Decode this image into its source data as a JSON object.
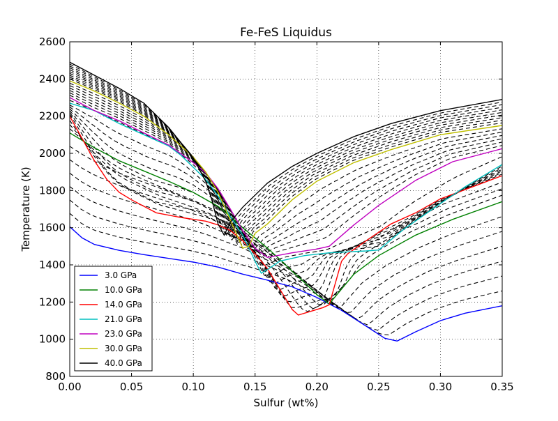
{
  "chart_data": {
    "type": "line",
    "title": "Fe-FeS Liquidus",
    "xlabel": "Sulfur (wt%)",
    "ylabel": "Temperature (K)",
    "xlim": [
      0.0,
      0.35
    ],
    "ylim": [
      800,
      2600
    ],
    "xticks": [
      "0.00",
      "0.05",
      "0.10",
      "0.15",
      "0.20",
      "0.25",
      "0.30",
      "0.35"
    ],
    "yticks": [
      "800",
      "1000",
      "1200",
      "1400",
      "1600",
      "1800",
      "2000",
      "2200",
      "2400",
      "2600"
    ],
    "grid": true,
    "legend_position": "lower-left",
    "series": [
      {
        "name": "3.0 GPa",
        "color": "#0000ff",
        "style": "solid",
        "points": [
          [
            0.0,
            1605
          ],
          [
            0.01,
            1545
          ],
          [
            0.02,
            1510
          ],
          [
            0.04,
            1478
          ],
          [
            0.06,
            1455
          ],
          [
            0.08,
            1435
          ],
          [
            0.1,
            1415
          ],
          [
            0.12,
            1388
          ],
          [
            0.14,
            1350
          ],
          [
            0.16,
            1318
          ],
          [
            0.18,
            1282
          ],
          [
            0.2,
            1225
          ],
          [
            0.22,
            1155
          ],
          [
            0.24,
            1070
          ],
          [
            0.255,
            1005
          ],
          [
            0.265,
            990
          ],
          [
            0.28,
            1040
          ],
          [
            0.3,
            1100
          ],
          [
            0.32,
            1140
          ],
          [
            0.35,
            1180
          ]
        ]
      },
      {
        "name": "10.0 GPa",
        "color": "#008000",
        "style": "solid",
        "points": [
          [
            0.0,
            2110
          ],
          [
            0.02,
            2030
          ],
          [
            0.04,
            1960
          ],
          [
            0.06,
            1905
          ],
          [
            0.08,
            1850
          ],
          [
            0.1,
            1790
          ],
          [
            0.12,
            1715
          ],
          [
            0.13,
            1660
          ],
          [
            0.14,
            1600
          ],
          [
            0.15,
            1545
          ],
          [
            0.16,
            1490
          ],
          [
            0.17,
            1430
          ],
          [
            0.18,
            1365
          ],
          [
            0.19,
            1305
          ],
          [
            0.2,
            1240
          ],
          [
            0.21,
            1190
          ],
          [
            0.22,
            1270
          ],
          [
            0.23,
            1350
          ],
          [
            0.25,
            1450
          ],
          [
            0.28,
            1560
          ],
          [
            0.31,
            1645
          ],
          [
            0.35,
            1740
          ]
        ]
      },
      {
        "name": "14.0 GPa",
        "color": "#ff0000",
        "style": "solid",
        "points": [
          [
            0.0,
            2200
          ],
          [
            0.01,
            2080
          ],
          [
            0.02,
            1960
          ],
          [
            0.03,
            1860
          ],
          [
            0.04,
            1790
          ],
          [
            0.05,
            1750
          ],
          [
            0.07,
            1680
          ],
          [
            0.09,
            1655
          ],
          [
            0.11,
            1635
          ],
          [
            0.12,
            1615
          ],
          [
            0.13,
            1585
          ],
          [
            0.14,
            1530
          ],
          [
            0.15,
            1460
          ],
          [
            0.16,
            1380
          ],
          [
            0.17,
            1270
          ],
          [
            0.18,
            1160
          ],
          [
            0.185,
            1130
          ],
          [
            0.195,
            1150
          ],
          [
            0.205,
            1170
          ],
          [
            0.21,
            1185
          ],
          [
            0.22,
            1420
          ],
          [
            0.225,
            1460
          ],
          [
            0.24,
            1530
          ],
          [
            0.26,
            1620
          ],
          [
            0.28,
            1680
          ],
          [
            0.3,
            1755
          ],
          [
            0.33,
            1830
          ],
          [
            0.35,
            1880
          ]
        ]
      },
      {
        "name": "21.0 GPa",
        "color": "#00bfbf",
        "style": "solid",
        "points": [
          [
            0.0,
            2270
          ],
          [
            0.02,
            2230
          ],
          [
            0.04,
            2160
          ],
          [
            0.06,
            2100
          ],
          [
            0.08,
            2040
          ],
          [
            0.09,
            1990
          ],
          [
            0.1,
            1925
          ],
          [
            0.11,
            1860
          ],
          [
            0.12,
            1770
          ],
          [
            0.13,
            1660
          ],
          [
            0.14,
            1560
          ],
          [
            0.15,
            1420
          ],
          [
            0.155,
            1355
          ],
          [
            0.16,
            1375
          ],
          [
            0.17,
            1420
          ],
          [
            0.19,
            1450
          ],
          [
            0.21,
            1465
          ],
          [
            0.24,
            1475
          ],
          [
            0.25,
            1480
          ],
          [
            0.27,
            1590
          ],
          [
            0.3,
            1730
          ],
          [
            0.32,
            1820
          ],
          [
            0.35,
            1940
          ]
        ]
      },
      {
        "name": "23.0 GPa",
        "color": "#bf00bf",
        "style": "solid",
        "points": [
          [
            0.0,
            2300
          ],
          [
            0.02,
            2230
          ],
          [
            0.04,
            2175
          ],
          [
            0.06,
            2110
          ],
          [
            0.08,
            2045
          ],
          [
            0.1,
            1950
          ],
          [
            0.11,
            1895
          ],
          [
            0.12,
            1810
          ],
          [
            0.13,
            1700
          ],
          [
            0.14,
            1585
          ],
          [
            0.15,
            1490
          ],
          [
            0.16,
            1440
          ],
          [
            0.18,
            1465
          ],
          [
            0.2,
            1485
          ],
          [
            0.21,
            1500
          ],
          [
            0.23,
            1615
          ],
          [
            0.25,
            1720
          ],
          [
            0.28,
            1855
          ],
          [
            0.31,
            1955
          ],
          [
            0.35,
            2025
          ]
        ]
      },
      {
        "name": "30.0 GPa",
        "color": "#bfbf00",
        "style": "solid",
        "points": [
          [
            0.0,
            2390
          ],
          [
            0.02,
            2335
          ],
          [
            0.04,
            2270
          ],
          [
            0.06,
            2200
          ],
          [
            0.08,
            2100
          ],
          [
            0.1,
            1980
          ],
          [
            0.11,
            1900
          ],
          [
            0.12,
            1790
          ],
          [
            0.13,
            1640
          ],
          [
            0.14,
            1490
          ],
          [
            0.145,
            1500
          ],
          [
            0.15,
            1570
          ],
          [
            0.16,
            1620
          ],
          [
            0.18,
            1750
          ],
          [
            0.2,
            1850
          ],
          [
            0.23,
            1950
          ],
          [
            0.26,
            2020
          ],
          [
            0.3,
            2100
          ],
          [
            0.35,
            2150
          ]
        ]
      },
      {
        "name": "40.0 GPa",
        "color": "#000000",
        "style": "solid",
        "points": [
          [
            0.0,
            2490
          ],
          [
            0.02,
            2420
          ],
          [
            0.04,
            2350
          ],
          [
            0.06,
            2270
          ],
          [
            0.08,
            2140
          ],
          [
            0.1,
            1975
          ],
          [
            0.11,
            1850
          ],
          [
            0.115,
            1750
          ],
          [
            0.12,
            1620
          ],
          [
            0.125,
            1560
          ],
          [
            0.13,
            1630
          ],
          [
            0.14,
            1710
          ],
          [
            0.16,
            1840
          ],
          [
            0.18,
            1930
          ],
          [
            0.2,
            2000
          ],
          [
            0.23,
            2090
          ],
          [
            0.26,
            2160
          ],
          [
            0.3,
            2230
          ],
          [
            0.35,
            2290
          ]
        ]
      }
    ],
    "dashed_pressures": [
      4,
      5,
      6,
      7,
      8,
      9,
      11,
      12,
      13,
      15,
      16,
      17,
      18,
      19,
      20,
      22,
      24,
      25,
      26,
      27,
      28,
      29,
      31,
      32,
      33,
      34,
      35,
      36,
      37,
      38,
      39
    ],
    "dashed_color": "#000000"
  }
}
